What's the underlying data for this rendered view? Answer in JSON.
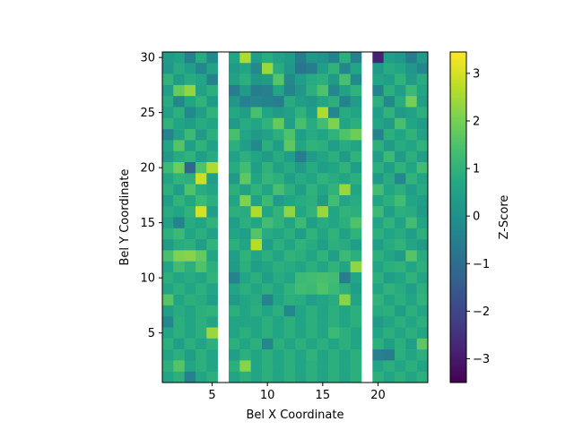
{
  "chart_data": {
    "type": "heatmap",
    "title": "",
    "xlabel": "Bel X Coordinate",
    "ylabel": "Bel Y Coordinate",
    "colorbar_label": "Z-Score",
    "colormap": "viridis",
    "xlim": [
      0.5,
      24.5
    ],
    "ylim": [
      0.5,
      30.5
    ],
    "x_ticks": [
      5,
      10,
      15,
      20
    ],
    "y_ticks": [
      5,
      10,
      15,
      20,
      25,
      30
    ],
    "colorbar_range": [
      -3.5,
      3.45
    ],
    "colorbar_ticks": [
      -3,
      -2,
      -1,
      0,
      1,
      2,
      3
    ],
    "empty_columns": [
      6,
      19
    ],
    "x": [
      1,
      2,
      3,
      4,
      5,
      6,
      7,
      8,
      9,
      10,
      11,
      12,
      13,
      14,
      15,
      16,
      17,
      18,
      19,
      20,
      21,
      22,
      23,
      24
    ],
    "y_rows_top_to_bottom": [
      30,
      29,
      28,
      27,
      26,
      25,
      24,
      23,
      22,
      21,
      20,
      19,
      18,
      17,
      16,
      15,
      14,
      13,
      12,
      11,
      10,
      9,
      8,
      7,
      6,
      5,
      4,
      3,
      2,
      1
    ],
    "z_rows_top_to_bottom": [
      [
        0.3,
        0.5,
        -0.5,
        0.8,
        -0.2,
        null,
        0.6,
        2.6,
        0.4,
        0.8,
        0.5,
        0.3,
        -0.6,
        0.2,
        0.1,
        -0.4,
        0.9,
        -0.5,
        null,
        -2.8,
        0.4,
        0.2,
        -0.6,
        0.3
      ],
      [
        0.2,
        0.8,
        0.4,
        -0.3,
        0.5,
        null,
        0.3,
        0.6,
        -0.2,
        2.4,
        0.8,
        0.2,
        -0.8,
        -0.6,
        0.4,
        1.0,
        -0.3,
        0.6,
        null,
        0.3,
        0.8,
        0.6,
        0.2,
        -0.3
      ],
      [
        1.0,
        0.3,
        0.8,
        0.6,
        -0.4,
        null,
        0.5,
        0.9,
        0.2,
        0.3,
        1.6,
        -0.2,
        0.4,
        0.8,
        0.9,
        0.3,
        1.4,
        -0.2,
        null,
        0.6,
        0.4,
        1.0,
        0.3,
        0.8
      ],
      [
        0.4,
        1.8,
        2.3,
        0.5,
        0.9,
        null,
        -0.6,
        0.3,
        -0.6,
        -0.5,
        0.6,
        -0.4,
        0.2,
        0.9,
        1.5,
        -0.3,
        0.5,
        1.0,
        null,
        -0.4,
        0.9,
        0.4,
        1.2,
        0.6
      ],
      [
        0.8,
        -0.3,
        0.6,
        1.0,
        0.3,
        null,
        0.2,
        -0.5,
        -0.3,
        -0.4,
        -0.6,
        0.8,
        0.4,
        0.2,
        0.6,
        0.9,
        -0.4,
        0.3,
        null,
        0.9,
        -0.2,
        0.8,
        2.0,
        0.4
      ],
      [
        0.5,
        0.9,
        -0.2,
        0.4,
        1.0,
        null,
        0.7,
        0.4,
        1.4,
        0.6,
        0.3,
        0.5,
        1.0,
        0.4,
        2.6,
        -0.3,
        0.8,
        0.6,
        null,
        0.4,
        1.0,
        0.3,
        0.5,
        0.9
      ],
      [
        1.0,
        0.6,
        0.4,
        0.8,
        0.6,
        null,
        0.3,
        0.8,
        0.6,
        1.0,
        1.8,
        0.4,
        1.4,
        0.8,
        1.3,
        2.1,
        0.6,
        0.9,
        null,
        0.6,
        0.3,
        1.4,
        0.6,
        0.3
      ],
      [
        -0.4,
        0.5,
        1.2,
        0.3,
        0.9,
        null,
        1.4,
        0.6,
        0.3,
        0.5,
        0.9,
        1.5,
        0.4,
        0.8,
        0.6,
        1.0,
        1.5,
        1.9,
        null,
        -0.4,
        0.9,
        0.6,
        1.0,
        0.5
      ],
      [
        0.6,
        1.6,
        0.4,
        1.0,
        0.5,
        null,
        0.9,
        0.4,
        -0.2,
        0.9,
        0.4,
        1.7,
        0.6,
        1.0,
        0.9,
        0.4,
        0.8,
        0.6,
        null,
        0.9,
        0.3,
        0.8,
        0.6,
        1.0
      ],
      [
        0.3,
        0.8,
        1.0,
        0.4,
        0.8,
        null,
        0.5,
        0.9,
        0.6,
        0.3,
        0.8,
        0.4,
        -0.6,
        0.3,
        0.6,
        0.9,
        0.3,
        1.0,
        null,
        0.4,
        1.2,
        0.3,
        0.9,
        0.4
      ],
      [
        1.2,
        1.9,
        -1.2,
        1.5,
        2.6,
        null,
        0.8,
        1.3,
        0.4,
        1.0,
        0.5,
        0.8,
        0.3,
        0.8,
        0.4,
        0.6,
        1.0,
        0.4,
        null,
        0.9,
        0.4,
        1.0,
        0.6,
        1.3
      ],
      [
        0.6,
        1.0,
        0.9,
        2.9,
        0.4,
        null,
        0.3,
        1.7,
        0.6,
        1.1,
        0.9,
        0.4,
        0.8,
        0.6,
        1.0,
        0.8,
        0.6,
        0.9,
        null,
        0.3,
        0.8,
        -0.3,
        1.0,
        0.6
      ],
      [
        0.9,
        0.4,
        1.5,
        0.8,
        0.6,
        null,
        0.9,
        0.5,
        1.0,
        0.6,
        1.4,
        0.9,
        0.4,
        1.0,
        0.6,
        1.0,
        2.4,
        0.6,
        null,
        1.3,
        0.6,
        0.9,
        0.4,
        0.8
      ],
      [
        0.4,
        1.0,
        0.6,
        1.2,
        0.9,
        null,
        0.6,
        2.1,
        0.5,
        1.2,
        0.3,
        0.6,
        0.8,
        0.9,
        0.3,
        1.3,
        0.6,
        0.8,
        null,
        0.6,
        0.9,
        1.3,
        0.6,
        0.4
      ],
      [
        0.8,
        0.6,
        1.0,
        3.0,
        0.4,
        null,
        0.9,
        0.8,
        2.6,
        0.6,
        1.0,
        2.3,
        0.6,
        1.0,
        2.4,
        0.6,
        1.0,
        0.9,
        null,
        1.2,
        0.4,
        0.9,
        0.8,
        0.3
      ],
      [
        0.5,
        -0.4,
        0.8,
        0.6,
        1.0,
        null,
        0.4,
        0.9,
        0.6,
        1.3,
        1.0,
        0.6,
        1.2,
        0.4,
        0.8,
        0.6,
        0.9,
        1.5,
        null,
        0.6,
        1.0,
        0.5,
        1.3,
        0.6
      ],
      [
        0.9,
        1.2,
        0.6,
        0.9,
        0.5,
        null,
        0.6,
        0.4,
        1.6,
        0.8,
        0.6,
        0.9,
        0.4,
        1.0,
        0.6,
        1.0,
        0.5,
        1.0,
        null,
        0.9,
        0.6,
        0.8,
        0.4,
        0.9
      ],
      [
        0.3,
        0.8,
        0.9,
        0.4,
        1.0,
        null,
        0.9,
        0.6,
        2.7,
        0.4,
        0.9,
        0.6,
        1.0,
        0.8,
        0.4,
        0.9,
        0.8,
        0.4,
        null,
        0.4,
        0.8,
        1.0,
        0.6,
        0.3
      ],
      [
        1.4,
        2.1,
        2.2,
        1.8,
        0.6,
        null,
        0.4,
        1.0,
        0.6,
        0.9,
        0.6,
        1.0,
        0.9,
        0.6,
        1.0,
        0.4,
        1.2,
        0.9,
        null,
        0.9,
        0.6,
        0.3,
        1.6,
        0.8
      ],
      [
        0.6,
        1.3,
        0.9,
        1.5,
        0.9,
        null,
        0.3,
        0.9,
        0.4,
        0.6,
        0.9,
        0.8,
        0.6,
        0.9,
        0.6,
        1.0,
        0.6,
        2.3,
        null,
        0.6,
        0.9,
        1.0,
        0.6,
        0.9
      ],
      [
        0.9,
        0.6,
        0.8,
        0.6,
        1.0,
        null,
        -0.4,
        0.6,
        0.9,
        0.4,
        0.8,
        0.6,
        1.2,
        1.3,
        1.4,
        1.3,
        -0.6,
        0.6,
        null,
        0.9,
        0.4,
        0.6,
        1.0,
        0.6
      ],
      [
        0.6,
        0.9,
        0.6,
        0.9,
        0.6,
        null,
        0.6,
        0.9,
        0.6,
        0.9,
        0.6,
        1.0,
        1.3,
        1.2,
        1.5,
        1.2,
        0.9,
        0.4,
        null,
        0.6,
        1.0,
        0.8,
        0.4,
        0.9
      ],
      [
        1.6,
        0.6,
        0.9,
        0.8,
        0.4,
        null,
        0.3,
        0.6,
        0.8,
        -0.4,
        0.6,
        0.9,
        0.8,
        0.4,
        0.6,
        0.8,
        2.2,
        0.6,
        null,
        1.0,
        0.6,
        0.9,
        0.6,
        1.0
      ],
      [
        0.4,
        0.8,
        0.6,
        0.9,
        1.0,
        null,
        0.9,
        0.6,
        0.9,
        0.6,
        0.9,
        -0.3,
        0.6,
        0.9,
        0.6,
        0.9,
        0.6,
        0.9,
        null,
        0.8,
        0.9,
        0.4,
        0.9,
        0.6
      ],
      [
        -0.3,
        0.9,
        0.6,
        0.9,
        0.6,
        null,
        0.6,
        0.6,
        0.6,
        0.9,
        0.6,
        0.9,
        0.6,
        0.9,
        0.6,
        0.9,
        0.6,
        0.9,
        null,
        0.3,
        0.6,
        0.9,
        0.6,
        0.9
      ],
      [
        0.6,
        0.9,
        0.6,
        0.9,
        2.4,
        null,
        0.6,
        0.9,
        0.6,
        0.9,
        0.6,
        0.9,
        0.6,
        0.9,
        0.6,
        1.2,
        0.9,
        0.6,
        null,
        0.6,
        0.9,
        0.6,
        0.9,
        0.6
      ],
      [
        0.9,
        0.4,
        0.9,
        0.6,
        0.9,
        null,
        0.9,
        0.6,
        0.9,
        -0.3,
        0.9,
        0.6,
        0.9,
        0.6,
        0.9,
        0.6,
        0.9,
        0.6,
        null,
        0.9,
        0.4,
        0.9,
        0.4,
        1.7
      ],
      [
        0.6,
        0.9,
        0.4,
        0.9,
        0.6,
        null,
        0.4,
        0.9,
        0.6,
        0.9,
        0.6,
        0.9,
        0.6,
        1.0,
        0.6,
        0.9,
        0.6,
        0.9,
        null,
        -0.5,
        -0.6,
        0.9,
        0.6,
        0.9
      ],
      [
        0.9,
        1.6,
        0.6,
        0.9,
        0.6,
        null,
        0.9,
        2.2,
        0.6,
        0.9,
        0.6,
        0.9,
        0.6,
        0.9,
        0.6,
        0.9,
        0.6,
        0.9,
        null,
        0.6,
        0.9,
        0.6,
        0.9,
        0.6
      ],
      [
        0.6,
        0.9,
        -0.5,
        0.6,
        0.9,
        null,
        0.6,
        0.9,
        0.6,
        0.9,
        0.6,
        0.9,
        0.6,
        0.9,
        0.6,
        0.9,
        0.6,
        0.9,
        null,
        0.9,
        0.6,
        0.9,
        0.6,
        0.9
      ]
    ]
  }
}
